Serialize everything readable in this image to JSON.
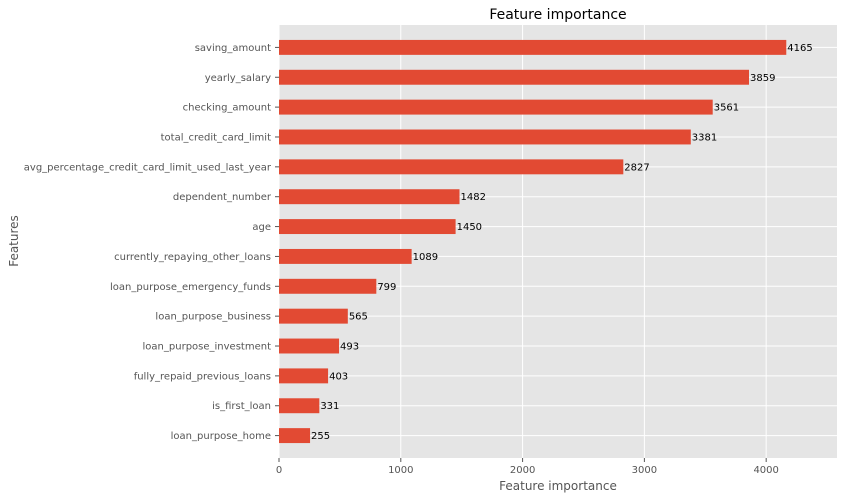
{
  "chart_data": {
    "type": "bar",
    "orientation": "horizontal",
    "title": "Feature importance",
    "xlabel": "Feature importance",
    "ylabel": "Features",
    "categories": [
      "loan_purpose_home",
      "is_first_loan",
      "fully_repaid_previous_loans",
      "loan_purpose_investment",
      "loan_purpose_business",
      "loan_purpose_emergency_funds",
      "currently_repaying_other_loans",
      "age",
      "dependent_number",
      "avg_percentage_credit_card_limit_used_last_year",
      "total_credit_card_limit",
      "checking_amount",
      "yearly_salary",
      "saving_amount"
    ],
    "values": [
      255,
      331,
      403,
      493,
      565,
      799,
      1089,
      1450,
      1482,
      2827,
      3381,
      3561,
      3859,
      4165
    ],
    "value_labels": [
      "255",
      "331",
      "403",
      "493",
      "565",
      "799",
      "1089",
      "1450",
      "1482",
      "2827",
      "3381",
      "3561",
      "3859",
      "4165"
    ],
    "xlim": [
      0,
      4581.5
    ],
    "x_ticks": [
      0,
      1000,
      2000,
      3000,
      4000
    ],
    "x_tick_labels": [
      "0",
      "1000",
      "2000",
      "3000",
      "4000"
    ],
    "grid": true,
    "colors": {
      "bar": "#E24A33",
      "plot_background": "#E5E5E5",
      "grid": "#FFFFFF",
      "tick_text": "#555555",
      "title_text": "#000000",
      "value_text": "#000000"
    }
  }
}
